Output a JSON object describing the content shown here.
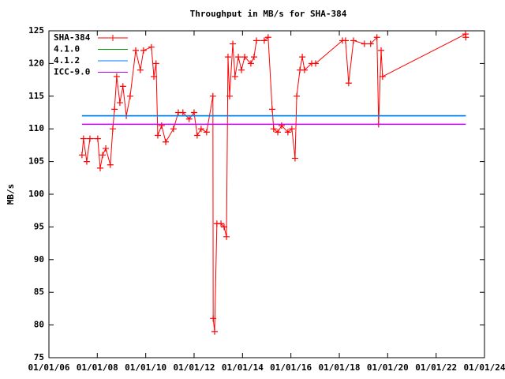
{
  "chart_data": {
    "type": "line",
    "title": "Throughput in MB/s for SHA-384",
    "y_label": "MB/s",
    "xlim": [
      "2006-01-01",
      "2024-01-01"
    ],
    "xticks": [
      {
        "value": "2006-01-01",
        "label": "01/01/06"
      },
      {
        "value": "2008-01-01",
        "label": "01/01/08"
      },
      {
        "value": "2010-01-01",
        "label": "01/01/10"
      },
      {
        "value": "2012-01-01",
        "label": "01/01/12"
      },
      {
        "value": "2014-01-01",
        "label": "01/01/14"
      },
      {
        "value": "2016-01-01",
        "label": "01/01/16"
      },
      {
        "value": "2018-01-01",
        "label": "01/01/18"
      },
      {
        "value": "2020-01-01",
        "label": "01/01/20"
      },
      {
        "value": "2022-01-01",
        "label": "01/01/22"
      },
      {
        "value": "2024-01-01",
        "label": "01/01/24"
      }
    ],
    "ylim": [
      75,
      125
    ],
    "yticks": [
      75,
      80,
      85,
      90,
      95,
      100,
      105,
      110,
      115,
      120,
      125
    ],
    "grid": false,
    "legend": "top-left",
    "series": [
      {
        "name": "SHA-384",
        "color": "#ff0000",
        "markers": true,
        "x": [
          "2007-05-15",
          "2007-06-07",
          "2007-07-26",
          "2007-09-12",
          "2008-01-08",
          "2008-02-14",
          "2008-03-22",
          "2008-05-08",
          "2008-07-16",
          "2008-08-22",
          "2008-09-17",
          "2008-10-20",
          "2008-12-07",
          "2009-01-22",
          "2009-03-14",
          "2009-05-11",
          "2009-08-03",
          "2009-10-12",
          "2009-11-29",
          "2010-03-28",
          "2010-05-04",
          "2010-06-06",
          "2010-07-02",
          "2010-08-29",
          "2010-10-30",
          "2011-02-24",
          "2011-05-08",
          "2011-07-16",
          "2011-10-19",
          "2012-01-01",
          "2012-02-17",
          "2012-04-16",
          "2012-07-08",
          "2012-10-11",
          "2012-10-15",
          "2012-11-06",
          "2012-12-10",
          "2013-02-10",
          "2013-03-29",
          "2013-05-04",
          "2013-05-27",
          "2013-06-20",
          "2013-08-07",
          "2013-09-10",
          "2013-10-30",
          "2013-12-16",
          "2014-02-02",
          "2014-05-07",
          "2014-06-24",
          "2014-07-30",
          "2014-11-25",
          "2015-01-23",
          "2015-03-25",
          "2015-04-16",
          "2015-06-17",
          "2015-08-14",
          "2015-11-17",
          "2016-01-16",
          "2016-03-04",
          "2016-03-29",
          "2016-05-16",
          "2016-06-21",
          "2016-07-25",
          "2016-11-10",
          "2017-01-08",
          "2018-02-17",
          "2018-04-05",
          "2018-05-22",
          "2018-08-03",
          "2019-01-15",
          "2019-04-19",
          "2019-07-23",
          "2019-08-17",
          "2019-09-24",
          "2019-10-16",
          "2023-03-21",
          "2023-03-25"
        ],
        "values": [
          106,
          108.5,
          105,
          108.5,
          108.5,
          104,
          106,
          107,
          104.5,
          110,
          113,
          118,
          114,
          116.5,
          112,
          115,
          122,
          119,
          122,
          122.5,
          118,
          120,
          109,
          110.5,
          108,
          110,
          112.5,
          112.5,
          111.5,
          112.5,
          109,
          110,
          109.5,
          115,
          81,
          79,
          95.5,
          95.5,
          95,
          93.5,
          121,
          115,
          123,
          118,
          121,
          119,
          121,
          120,
          121,
          123.5,
          123.5,
          124,
          113,
          110,
          109.5,
          110.5,
          109.5,
          110,
          105.5,
          115,
          119,
          121,
          119,
          120,
          120,
          123.5,
          123.5,
          117,
          123.5,
          123,
          123,
          124,
          110.7,
          122,
          118,
          124.5,
          124
        ]
      },
      {
        "name": "4.1.0",
        "color": "#00a000",
        "markers": false,
        "x": [
          "2007-05-15",
          "2023-03-25"
        ],
        "values": [
          112,
          112
        ]
      },
      {
        "name": "4.1.2",
        "color": "#0080ff",
        "markers": false,
        "x": [
          "2007-05-15",
          "2023-03-25"
        ],
        "values": [
          112,
          112
        ]
      },
      {
        "name": "ICC-9.0",
        "color": "#c000ff",
        "markers": false,
        "x": [
          "2007-05-15",
          "2023-03-25"
        ],
        "values": [
          110.7,
          110.7
        ]
      }
    ]
  }
}
